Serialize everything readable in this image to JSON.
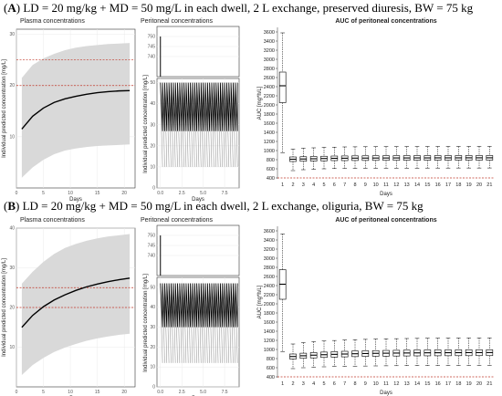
{
  "panels": [
    {
      "letter": "A",
      "title": ") LD = 20 mg/kg + MD = 50 mg/L in each dwell, 2 L exchange, preserved diuresis, BW = 75 kg",
      "chart_data": [
        {
          "type": "line",
          "title": "Plasma concentrations",
          "xlabel": "Days",
          "ylabel": "Individual predicted concentration [mg/L]",
          "xlim": [
            0,
            22
          ],
          "ylim": [
            0,
            31
          ],
          "xticks": [
            "0",
            "5",
            "10",
            "15",
            "20"
          ],
          "yticks": [
            "10",
            "20",
            "30"
          ],
          "median": {
            "x": [
              1,
              3,
              5,
              7,
              9,
              11,
              13,
              15,
              17,
              19,
              21
            ],
            "y": [
              11.5,
              14.0,
              15.6,
              16.7,
              17.4,
              17.9,
              18.3,
              18.6,
              18.8,
              18.95,
              19.0
            ]
          },
          "band": {
            "x": [
              1,
              3,
              5,
              7,
              9,
              11,
              13,
              15,
              17,
              19,
              21
            ],
            "lower": [
              2.0,
              4.0,
              5.5,
              6.6,
              7.3,
              7.7,
              8.0,
              8.2,
              8.3,
              8.4,
              8.5
            ],
            "upper": [
              21.5,
              24.0,
              25.3,
              26.2,
              26.9,
              27.4,
              27.7,
              27.9,
              28.1,
              28.2,
              28.3
            ]
          },
          "reference_lines": [
            20,
            25
          ]
        },
        {
          "type": "line",
          "title": "Peritoneal concentrations",
          "xlabel": "Days",
          "ylabel": "Individual predicted concentration [mg/L]",
          "xlim": [
            -0.4,
            9.2
          ],
          "xticks": [
            "0.0",
            "2.5",
            "5.0",
            "7.5"
          ],
          "ylim_top": [
            730,
            755
          ],
          "yticks_top": [
            "740",
            "745",
            "750"
          ],
          "ylim_bottom": [
            0,
            52
          ],
          "yticks_bottom": [
            "0",
            "10",
            "20",
            "30",
            "40",
            "50"
          ],
          "dwell_peak": 50,
          "median_trough": 27,
          "lower_trough": 10,
          "initial_peak": 750
        },
        {
          "type": "boxplot",
          "title": "AUC of peritoneal concentrations",
          "xlabel": "Days",
          "ylabel": "AUC [mg*h/L]",
          "ylim": [
            380,
            3700
          ],
          "categories": [
            "1",
            "2",
            "3",
            "4",
            "5",
            "6",
            "7",
            "8",
            "9",
            "10",
            "11",
            "12",
            "13",
            "14",
            "15",
            "16",
            "17",
            "18",
            "19",
            "20",
            "21"
          ],
          "yticks": [
            "400",
            "600",
            "800",
            "1000",
            "1200",
            "1400",
            "1600",
            "1800",
            "2000",
            "2200",
            "2400",
            "2600",
            "2800",
            "3000",
            "3200",
            "3400",
            "3600"
          ],
          "reference_line": 400,
          "boxes": [
            {
              "min": 950,
              "q1": 2050,
              "median": 2420,
              "q3": 2720,
              "max": 3580
            },
            {
              "min": 560,
              "q1": 760,
              "median": 810,
              "q3": 860,
              "max": 1030
            },
            {
              "min": 580,
              "q1": 765,
              "median": 815,
              "q3": 865,
              "max": 1050
            },
            {
              "min": 590,
              "q1": 770,
              "median": 820,
              "q3": 870,
              "max": 1060
            },
            {
              "min": 600,
              "q1": 775,
              "median": 825,
              "q3": 875,
              "max": 1070
            },
            {
              "min": 605,
              "q1": 780,
              "median": 830,
              "q3": 880,
              "max": 1075
            },
            {
              "min": 610,
              "q1": 780,
              "median": 832,
              "q3": 882,
              "max": 1080
            },
            {
              "min": 610,
              "q1": 782,
              "median": 834,
              "q3": 884,
              "max": 1082
            },
            {
              "min": 612,
              "q1": 783,
              "median": 835,
              "q3": 885,
              "max": 1084
            },
            {
              "min": 612,
              "q1": 784,
              "median": 836,
              "q3": 886,
              "max": 1085
            },
            {
              "min": 614,
              "q1": 785,
              "median": 837,
              "q3": 887,
              "max": 1086
            },
            {
              "min": 614,
              "q1": 785,
              "median": 838,
              "q3": 888,
              "max": 1087
            },
            {
              "min": 615,
              "q1": 786,
              "median": 838,
              "q3": 888,
              "max": 1088
            },
            {
              "min": 615,
              "q1": 786,
              "median": 839,
              "q3": 889,
              "max": 1088
            },
            {
              "min": 616,
              "q1": 787,
              "median": 839,
              "q3": 889,
              "max": 1089
            },
            {
              "min": 616,
              "q1": 787,
              "median": 840,
              "q3": 890,
              "max": 1089
            },
            {
              "min": 616,
              "q1": 787,
              "median": 840,
              "q3": 890,
              "max": 1090
            },
            {
              "min": 617,
              "q1": 788,
              "median": 840,
              "q3": 890,
              "max": 1090
            },
            {
              "min": 617,
              "q1": 788,
              "median": 841,
              "q3": 891,
              "max": 1090
            },
            {
              "min": 617,
              "q1": 788,
              "median": 841,
              "q3": 891,
              "max": 1091
            },
            {
              "min": 618,
              "q1": 788,
              "median": 841,
              "q3": 891,
              "max": 1091
            }
          ]
        }
      ]
    },
    {
      "letter": "B",
      "title": ") LD = 20 mg/kg + MD = 50 mg/L in each dwell, 2 L exchange, oliguria, BW = 75 kg",
      "chart_data": [
        {
          "type": "line",
          "title": "Plasma concentrations",
          "xlabel": "Days",
          "ylabel": "Individual predicted concentration [mg/L]",
          "xlim": [
            0,
            22
          ],
          "ylim": [
            0,
            40
          ],
          "xticks": [
            "0",
            "5",
            "10",
            "15",
            "20"
          ],
          "yticks": [
            "10",
            "20",
            "30",
            "40"
          ],
          "median": {
            "x": [
              1,
              3,
              5,
              7,
              9,
              11,
              13,
              15,
              17,
              19,
              21
            ],
            "y": [
              15.0,
              18.0,
              20.2,
              21.9,
              23.2,
              24.3,
              25.2,
              25.9,
              26.5,
              27.0,
              27.4
            ]
          },
          "band": {
            "x": [
              1,
              3,
              5,
              7,
              9,
              11,
              13,
              15,
              17,
              19,
              21
            ],
            "lower": [
              3.0,
              5.5,
              7.3,
              8.8,
              9.9,
              10.8,
              11.6,
              12.2,
              12.7,
              13.1,
              13.4
            ]
          },
          "band_upper": [
            26.0,
            29.0,
            31.5,
            33.5,
            35.0,
            36.0,
            36.8,
            37.4,
            37.9,
            38.2,
            38.5
          ],
          "reference_lines": [
            20,
            25
          ]
        },
        {
          "type": "line",
          "title": "Peritoneal concentrations",
          "xlabel": "Days",
          "ylabel": "Individual predicted concentration [mg/L]",
          "xlim": [
            -0.4,
            9.2
          ],
          "xticks": [
            "0.0",
            "2.5",
            "5.0",
            "7.5"
          ],
          "ylim_top": [
            730,
            755
          ],
          "yticks_top": [
            "740",
            "745",
            "750"
          ],
          "ylim_bottom": [
            0,
            55
          ],
          "yticks_bottom": [
            "0",
            "10",
            "20",
            "30",
            "40",
            "50"
          ],
          "dwell_peak": 52,
          "median_trough": 30,
          "lower_trough": 12,
          "initial_peak": 750
        },
        {
          "type": "boxplot",
          "title": "AUC of peritoneal concentrations",
          "xlabel": "Days",
          "ylabel": "AUC [mg*h/L]",
          "ylim": [
            380,
            3700
          ],
          "categories": [
            "1",
            "2",
            "3",
            "4",
            "5",
            "6",
            "7",
            "8",
            "9",
            "10",
            "11",
            "12",
            "13",
            "14",
            "15",
            "16",
            "17",
            "18",
            "19",
            "20",
            "21"
          ],
          "yticks": [
            "400",
            "600",
            "800",
            "1000",
            "1200",
            "1400",
            "1600",
            "1800",
            "2000",
            "2200",
            "2400",
            "2600",
            "2800",
            "3000",
            "3200",
            "3400",
            "3600"
          ],
          "reference_line": 400,
          "boxes": [
            {
              "min": 950,
              "q1": 2100,
              "median": 2430,
              "q3": 2750,
              "max": 3530
            },
            {
              "min": 580,
              "q1": 790,
              "median": 845,
              "q3": 900,
              "max": 1120
            },
            {
              "min": 600,
              "q1": 805,
              "median": 862,
              "q3": 918,
              "max": 1150
            },
            {
              "min": 610,
              "q1": 815,
              "median": 875,
              "q3": 932,
              "max": 1170
            },
            {
              "min": 620,
              "q1": 825,
              "median": 885,
              "q3": 943,
              "max": 1185
            },
            {
              "min": 625,
              "q1": 832,
              "median": 893,
              "q3": 952,
              "max": 1197
            },
            {
              "min": 630,
              "q1": 838,
              "median": 900,
              "q3": 960,
              "max": 1207
            },
            {
              "min": 634,
              "q1": 843,
              "median": 906,
              "q3": 966,
              "max": 1215
            },
            {
              "min": 637,
              "q1": 847,
              "median": 911,
              "q3": 971,
              "max": 1222
            },
            {
              "min": 640,
              "q1": 851,
              "median": 915,
              "q3": 975,
              "max": 1228
            },
            {
              "min": 642,
              "q1": 854,
              "median": 918,
              "q3": 979,
              "max": 1233
            },
            {
              "min": 644,
              "q1": 856,
              "median": 921,
              "q3": 982,
              "max": 1237
            },
            {
              "min": 646,
              "q1": 858,
              "median": 923,
              "q3": 985,
              "max": 1240
            },
            {
              "min": 647,
              "q1": 860,
              "median": 925,
              "q3": 987,
              "max": 1243
            },
            {
              "min": 648,
              "q1": 861,
              "median": 927,
              "q3": 989,
              "max": 1245
            },
            {
              "min": 649,
              "q1": 862,
              "median": 928,
              "q3": 990,
              "max": 1247
            },
            {
              "min": 650,
              "q1": 863,
              "median": 929,
              "q3": 991,
              "max": 1249
            },
            {
              "min": 650,
              "q1": 864,
              "median": 930,
              "q3": 992,
              "max": 1250
            },
            {
              "min": 651,
              "q1": 864,
              "median": 931,
              "q3": 993,
              "max": 1251
            },
            {
              "min": 651,
              "q1": 865,
              "median": 931,
              "q3": 994,
              "max": 1252
            },
            {
              "min": 652,
              "q1": 865,
              "median": 932,
              "q3": 994,
              "max": 1253
            }
          ]
        }
      ]
    }
  ],
  "colors": {
    "band": "#d9d9d9",
    "median": "#000000",
    "reference": "#c0392b",
    "grid": "#ebebeb",
    "box": "#000000"
  }
}
